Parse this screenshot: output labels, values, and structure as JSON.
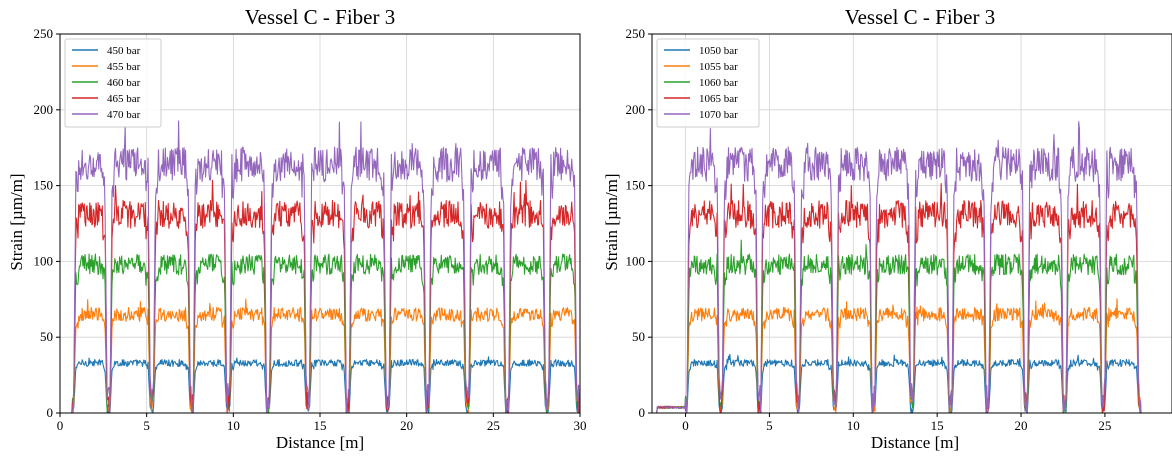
{
  "chart_data": [
    {
      "type": "line",
      "title": "Vessel C - Fiber 3",
      "xlabel": "Distance [m]",
      "ylabel": "Strain [µm/m]",
      "xlim": [
        0,
        30
      ],
      "ylim": [
        0,
        250
      ],
      "xticks": [
        0,
        5,
        10,
        15,
        20,
        25,
        30
      ],
      "yticks": [
        0,
        50,
        100,
        150,
        200,
        250
      ],
      "grid": true,
      "legend_position": "top-left",
      "segment_breaks_x": [
        0.7,
        2.8,
        5.3,
        7.6,
        9.7,
        12.0,
        14.3,
        16.6,
        18.9,
        21.2,
        23.5,
        25.8,
        28.1,
        29.9
      ],
      "series": [
        {
          "name": "450 bar",
          "color": "#1f77b4",
          "level": 33
        },
        {
          "name": "455 bar",
          "color": "#ff7f0e",
          "level": 65
        },
        {
          "name": "460 bar",
          "color": "#2ca02c",
          "level": 98
        },
        {
          "name": "465 bar",
          "color": "#d62728",
          "level": 131
        },
        {
          "name": "470 bar",
          "color": "#9467bd",
          "level": 164
        }
      ]
    },
    {
      "type": "line",
      "title": "Vessel C - Fiber 3",
      "xlabel": "Distance [m]",
      "ylabel": "Strain [µm/m]",
      "xlim": [
        -2,
        29
      ],
      "ylim": [
        0,
        250
      ],
      "xticks": [
        0,
        5,
        10,
        15,
        20,
        25
      ],
      "yticks": [
        0,
        50,
        100,
        150,
        200,
        250
      ],
      "grid": true,
      "legend_position": "top-left",
      "segment_breaks_x": [
        0,
        2.1,
        4.4,
        6.7,
        8.9,
        11.2,
        13.5,
        15.8,
        18.0,
        20.3,
        22.6,
        24.9,
        27.1
      ],
      "series": [
        {
          "name": "1050 bar",
          "color": "#1f77b4",
          "level": 33
        },
        {
          "name": "1055 bar",
          "color": "#ff7f0e",
          "level": 65
        },
        {
          "name": "1060 bar",
          "color": "#2ca02c",
          "level": 98
        },
        {
          "name": "1065 bar",
          "color": "#d62728",
          "level": 131
        },
        {
          "name": "1070 bar",
          "color": "#9467bd",
          "level": 164
        }
      ]
    }
  ]
}
